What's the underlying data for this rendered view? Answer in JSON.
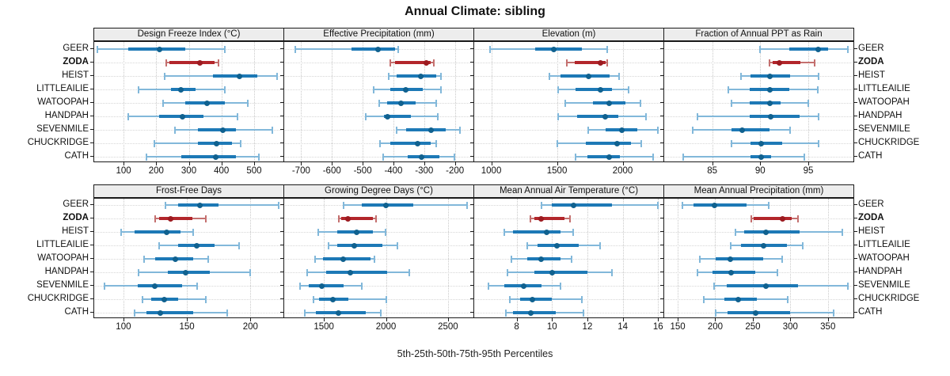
{
  "title": "Annual Climate: sibling",
  "caption": "5th-25th-50th-75th-95th Percentiles",
  "highlight_site": "ZODA",
  "colors": {
    "blue_bar": "#1d79b6",
    "blue_whisker": "#82b8da",
    "blue_dot": "#10618f",
    "red_bar": "#b2262b",
    "red_whisker": "#c4706f",
    "red_dot": "#9c1b20",
    "strip_bg": "#ededed",
    "panel_border": "#1a1a1a",
    "gridline": "#c9c9c9"
  },
  "chart_data": {
    "type": "dotplot-percentiles",
    "percentiles": [
      5,
      25,
      50,
      75,
      95
    ],
    "legend_note": "5th-25th-50th-75th-95th Percentiles",
    "sites": [
      "GEER",
      "ZODA",
      "HEIST",
      "LITTLEAILIE",
      "WATOOPAH",
      "HANDPAH",
      "SEVENMILE",
      "CHUCKRIDGE",
      "CATH"
    ],
    "panels": [
      {
        "title": "Design Freeze Index (°C)",
        "slug": "design-freeze-index",
        "domain": [
          10,
          590
        ],
        "ticks": [
          100,
          200,
          300,
          400,
          500
        ],
        "values": {
          "GEER": [
            20,
            115,
            210,
            290,
            410
          ],
          "ZODA": [
            230,
            240,
            335,
            378,
            390
          ],
          "HEIST": [
            225,
            375,
            455,
            510,
            570
          ],
          "LITTLEAILIE": [
            145,
            245,
            275,
            320,
            410
          ],
          "WATOOPAH": [
            220,
            288,
            355,
            410,
            480
          ],
          "HANDPAH": [
            115,
            210,
            280,
            345,
            450
          ],
          "SEVENMILE": [
            258,
            328,
            405,
            445,
            555
          ],
          "CHUCKRIDGE": [
            195,
            328,
            385,
            433,
            460
          ],
          "CATH": [
            170,
            278,
            383,
            444,
            515
          ]
        }
      },
      {
        "title": "Effective Precipitation (mm)",
        "slug": "effective-precipitation",
        "domain": [
          -755,
          -140
        ],
        "ticks": [
          -700,
          -600,
          -500,
          -400,
          -300,
          -200
        ],
        "values": {
          "GEER": [
            -720,
            -535,
            -450,
            -395,
            -385
          ],
          "ZODA": [
            -410,
            -396,
            -293,
            -280,
            -268
          ],
          "HEIST": [
            -415,
            -390,
            -310,
            -262,
            -245
          ],
          "LITTLEAILIE": [
            -463,
            -409,
            -359,
            -304,
            -245
          ],
          "WATOOPAH": [
            -446,
            -421,
            -376,
            -329,
            -260
          ],
          "HANDPAH": [
            -490,
            -430,
            -418,
            -342,
            -256
          ],
          "SEVENMILE": [
            -390,
            -360,
            -277,
            -229,
            -185
          ],
          "CHUCKRIDGE": [
            -443,
            -409,
            -321,
            -279,
            -260
          ],
          "CATH": [
            -434,
            -354,
            -309,
            -250,
            -203
          ]
        }
      },
      {
        "title": "Elevation (m)",
        "slug": "elevation",
        "domain": [
          870,
          2310
        ],
        "ticks": [
          1000,
          1500,
          2000
        ],
        "values": {
          "GEER": [
            990,
            1335,
            1478,
            1690,
            1880
          ],
          "ZODA": [
            1575,
            1635,
            1830,
            1870,
            1885
          ],
          "HEIST": [
            1445,
            1525,
            1742,
            1900,
            1970
          ],
          "LITTLEAILIE": [
            1508,
            1643,
            1830,
            1917,
            2044
          ],
          "WATOOPAH": [
            1560,
            1772,
            1897,
            2020,
            2135
          ],
          "HANDPAH": [
            1508,
            1653,
            1870,
            1964,
            2179
          ],
          "SEVENMILE": [
            1738,
            1870,
            1996,
            2109,
            2268
          ],
          "CHUCKRIDGE": [
            1504,
            1722,
            1956,
            2060,
            2139
          ],
          "CATH": [
            1639,
            1732,
            1900,
            1980,
            2234
          ]
        }
      },
      {
        "title": "Fraction of Annual PPT as Rain",
        "slug": "fraction-ppt-rain",
        "domain": [
          80,
          99.7
        ],
        "ticks": [
          85,
          90,
          95
        ],
        "values": {
          "GEER": [
            90,
            93,
            96,
            97.1,
            99.1
          ],
          "ZODA": [
            91,
            91.3,
            92,
            94.2,
            95.7
          ],
          "HEIST": [
            88,
            89,
            91,
            93.1,
            96.1
          ],
          "LITTLEAILIE": [
            86.7,
            88.9,
            91,
            93,
            96
          ],
          "WATOOPAH": [
            87,
            88.9,
            91,
            92.1,
            95
          ],
          "HANDPAH": [
            83.5,
            88.9,
            91.1,
            94.1,
            96.1
          ],
          "SEVENMILE": [
            83,
            87,
            88.1,
            91,
            93.1
          ],
          "CHUCKRIDGE": [
            87,
            89,
            90.1,
            92.3,
            96.1
          ],
          "CATH": [
            82,
            89,
            90.1,
            91.1,
            94.6
          ]
        }
      },
      {
        "title": "Frost-Free Days",
        "slug": "frost-free-days",
        "domain": [
          77,
          226
        ],
        "ticks": [
          100,
          150,
          200
        ],
        "values": {
          "GEER": [
            133,
            143,
            160,
            175,
            222
          ],
          "ZODA": [
            125,
            128,
            137,
            154,
            165
          ],
          "HEIST": [
            98,
            109,
            134,
            145,
            155
          ],
          "LITTLEAILIE": [
            128,
            143,
            158,
            172,
            191
          ],
          "WATOOPAH": [
            116,
            125,
            141,
            155,
            167
          ],
          "HANDPAH": [
            112,
            135,
            149,
            168,
            200
          ],
          "SEVENMILE": [
            85,
            111,
            125,
            146,
            158
          ],
          "CHUCKRIDGE": [
            115,
            122,
            132,
            143,
            165
          ],
          "CATH": [
            109,
            118,
            129,
            155,
            182
          ]
        }
      },
      {
        "title": "Growing Degree Days (°C)",
        "slug": "growing-degree-days",
        "domain": [
          1180,
          2705
        ],
        "ticks": [
          1500,
          2000,
          2500
        ],
        "values": {
          "GEER": [
            1660,
            1805,
            2000,
            2220,
            2655
          ],
          "ZODA": [
            1618,
            1640,
            1695,
            1895,
            1920
          ],
          "HEIST": [
            1455,
            1610,
            1765,
            1895,
            1995
          ],
          "LITTLEAILIE": [
            1535,
            1610,
            1745,
            1970,
            2090
          ],
          "WATOOPAH": [
            1430,
            1495,
            1655,
            1875,
            1905
          ],
          "HANDPAH": [
            1365,
            1515,
            1715,
            2010,
            2185
          ],
          "SEVENMILE": [
            1310,
            1375,
            1485,
            1660,
            1805
          ],
          "CHUCKRIDGE": [
            1415,
            1460,
            1575,
            1695,
            2005
          ],
          "CATH": [
            1345,
            1435,
            1620,
            1840,
            1960
          ]
        }
      },
      {
        "title": "Mean Annual Air Temperature (°C)",
        "slug": "mean-annual-air-temperature",
        "domain": [
          5.6,
          16.3
        ],
        "ticks": [
          8,
          10,
          12,
          14,
          16
        ],
        "values": {
          "GEER": [
            9.4,
            10,
            11.2,
            13.4,
            16
          ],
          "ZODA": [
            8.8,
            9,
            9.4,
            10.7,
            11
          ],
          "HEIST": [
            7.3,
            7.8,
            9.7,
            10.5,
            11.2
          ],
          "LITTLEAILIE": [
            8.6,
            9.2,
            10.3,
            11.5,
            12.7
          ],
          "WATOOPAH": [
            7.7,
            8.6,
            9.4,
            10.5,
            11.1
          ],
          "HANDPAH": [
            7.5,
            9,
            10,
            12,
            13.4
          ],
          "SEVENMILE": [
            6.4,
            7.3,
            8.4,
            9.4,
            10.5
          ],
          "CHUCKRIDGE": [
            7.6,
            8.2,
            8.9,
            10,
            11.7
          ],
          "CATH": [
            7.4,
            7.8,
            8.8,
            10.2,
            11.8
          ]
        }
      },
      {
        "title": "Mean Annual Precipitation (mm)",
        "slug": "mean-annual-precipitation",
        "domain": [
          132,
          384
        ],
        "ticks": [
          150,
          200,
          250,
          300,
          350
        ],
        "values": {
          "GEER": [
            156,
            171,
            199,
            242,
            271
          ],
          "ZODA": [
            248,
            251,
            290,
            302,
            310
          ],
          "HEIST": [
            227,
            238,
            268,
            312,
            369
          ],
          "LITTLEAILIE": [
            221,
            234,
            264,
            295,
            317
          ],
          "WATOOPAH": [
            179,
            201,
            220,
            264,
            289
          ],
          "HANDPAH": [
            176,
            196,
            221,
            253,
            283
          ],
          "SEVENMILE": [
            198,
            215,
            267,
            310,
            377
          ],
          "CHUCKRIDGE": [
            185,
            212,
            231,
            255,
            296
          ],
          "CATH": [
            201,
            216,
            254,
            300,
            358
          ]
        }
      }
    ]
  }
}
